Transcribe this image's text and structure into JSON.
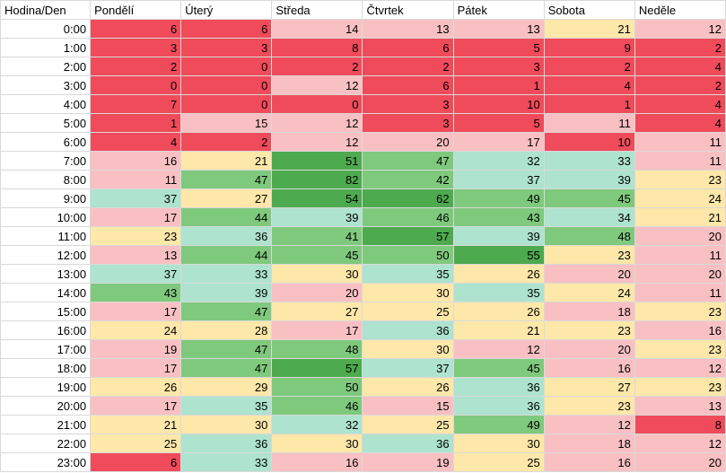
{
  "header": {
    "corner": "Hodina/Den",
    "days": [
      "Pondělí",
      "Úterý",
      "Středa",
      "Čtvrtek",
      "Pátek",
      "Sobota",
      "Neděle"
    ]
  },
  "rows": [
    {
      "hour": "0:00",
      "values": [
        6,
        6,
        14,
        13,
        13,
        21,
        12
      ]
    },
    {
      "hour": "1:00",
      "values": [
        3,
        3,
        8,
        6,
        5,
        9,
        2
      ]
    },
    {
      "hour": "2:00",
      "values": [
        2,
        0,
        2,
        2,
        3,
        2,
        4
      ]
    },
    {
      "hour": "3:00",
      "values": [
        0,
        0,
        12,
        6,
        1,
        4,
        2
      ]
    },
    {
      "hour": "4:00",
      "values": [
        7,
        0,
        0,
        3,
        10,
        1,
        4
      ]
    },
    {
      "hour": "5:00",
      "values": [
        1,
        15,
        12,
        3,
        5,
        11,
        4
      ]
    },
    {
      "hour": "6:00",
      "values": [
        4,
        2,
        12,
        20,
        17,
        10,
        11
      ]
    },
    {
      "hour": "7:00",
      "values": [
        16,
        21,
        51,
        47,
        32,
        33,
        11
      ]
    },
    {
      "hour": "8:00",
      "values": [
        11,
        47,
        82,
        42,
        37,
        39,
        23
      ]
    },
    {
      "hour": "9:00",
      "values": [
        37,
        27,
        54,
        62,
        49,
        45,
        24
      ]
    },
    {
      "hour": "10:00",
      "values": [
        17,
        44,
        39,
        46,
        43,
        34,
        21
      ]
    },
    {
      "hour": "11:00",
      "values": [
        23,
        36,
        41,
        57,
        39,
        48,
        20
      ]
    },
    {
      "hour": "12:00",
      "values": [
        13,
        44,
        45,
        50,
        55,
        23,
        11
      ]
    },
    {
      "hour": "13:00",
      "values": [
        37,
        33,
        30,
        35,
        26,
        20,
        20
      ]
    },
    {
      "hour": "14:00",
      "values": [
        43,
        39,
        20,
        30,
        35,
        24,
        11
      ]
    },
    {
      "hour": "15:00",
      "values": [
        17,
        47,
        27,
        25,
        26,
        18,
        23
      ]
    },
    {
      "hour": "16:00",
      "values": [
        24,
        28,
        17,
        36,
        21,
        23,
        16
      ]
    },
    {
      "hour": "17:00",
      "values": [
        19,
        47,
        48,
        30,
        12,
        20,
        23
      ]
    },
    {
      "hour": "18:00",
      "values": [
        17,
        47,
        57,
        37,
        45,
        16,
        12
      ]
    },
    {
      "hour": "19:00",
      "values": [
        26,
        29,
        50,
        26,
        36,
        27,
        23
      ]
    },
    {
      "hour": "20:00",
      "values": [
        17,
        35,
        46,
        15,
        36,
        23,
        13
      ]
    },
    {
      "hour": "21:00",
      "values": [
        21,
        30,
        32,
        25,
        49,
        12,
        8
      ]
    },
    {
      "hour": "22:00",
      "values": [
        25,
        36,
        30,
        36,
        30,
        18,
        12
      ]
    },
    {
      "hour": "23:00",
      "values": [
        6,
        33,
        16,
        19,
        25,
        16,
        20
      ]
    }
  ],
  "colors": {
    "lvl_1": "#f04b5a",
    "lvl_2": "#f9c0c3",
    "lvl_3": "#fde7a9",
    "lvl_4": "#aee3cf",
    "lvl_5": "#7fc97d",
    "lvl_6": "#4daa4e",
    "gridline": "#d9d9d9"
  }
}
